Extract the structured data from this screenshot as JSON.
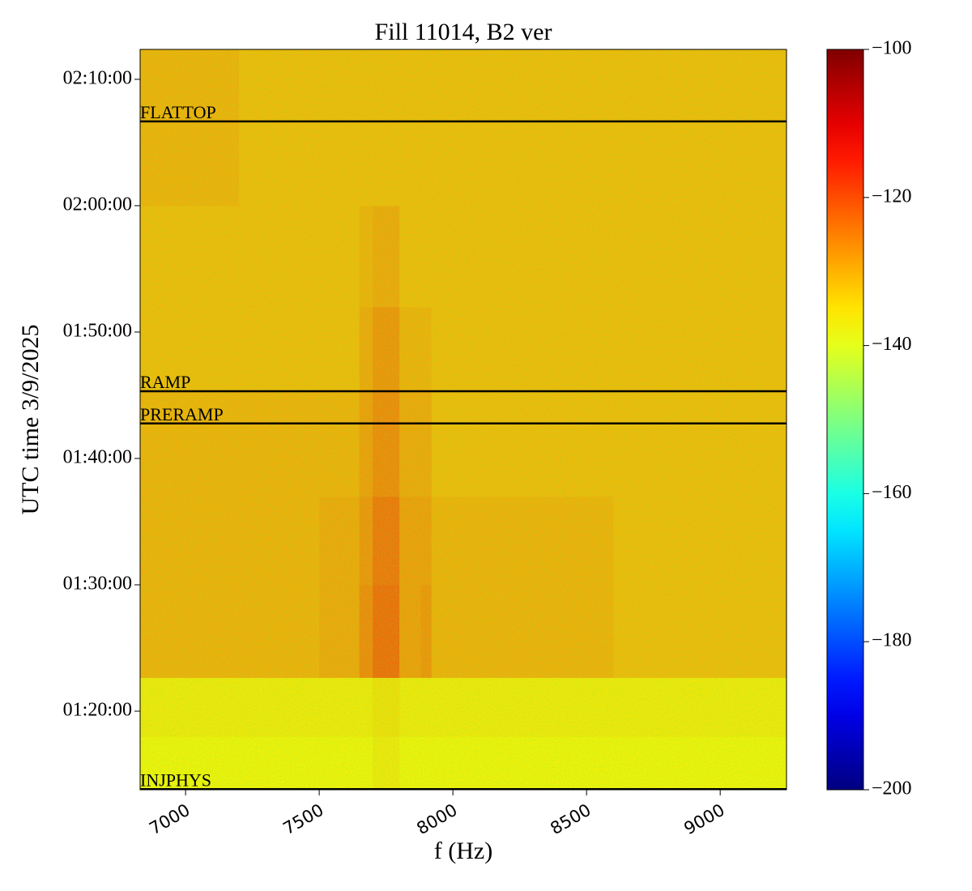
{
  "chart_data": {
    "type": "heatmap",
    "title": "Fill 11014, B2 ver",
    "xlabel": "f (Hz)",
    "ylabel": "UTC time 3/9/2025",
    "colormap": "jet",
    "xlim": [
      6830,
      9248
    ],
    "xticks": [
      7000,
      7500,
      8000,
      8500,
      9000
    ],
    "ylim": [
      "01:13:47",
      "02:12:22"
    ],
    "yticks": [
      "01:20:00",
      "01:30:00",
      "01:40:00",
      "01:50:00",
      "02:00:00",
      "02:10:00"
    ],
    "clim": [
      -200,
      -100
    ],
    "cticks": [
      {
        "value": -200,
        "label": "−200"
      },
      {
        "value": -180,
        "label": "−180"
      },
      {
        "value": -160,
        "label": "−160"
      },
      {
        "value": -140,
        "label": "−140"
      },
      {
        "value": -120,
        "label": "−120"
      },
      {
        "value": -100,
        "label": "−100"
      }
    ],
    "x_edges": [
      6830,
      7200,
      7500,
      7650,
      7700,
      7800,
      7880,
      7920,
      8200,
      8600,
      9000,
      9248
    ],
    "y_edges": [
      "01:13:47",
      "01:18:00",
      "01:22:40",
      "01:30:00",
      "01:37:00",
      "01:45:19",
      "01:52:00",
      "02:00:00",
      "02:06:40",
      "02:12:22"
    ],
    "z": [
      [
        -136,
        -136,
        -136,
        -136,
        -135,
        -136,
        -136,
        -136,
        -136,
        -136,
        -136
      ],
      [
        -135,
        -135,
        -135,
        -135,
        -134,
        -135,
        -135,
        -135,
        -135,
        -135,
        -135
      ],
      [
        -129,
        -129,
        -128,
        -125,
        -122,
        -127,
        -126,
        -129,
        -129,
        -130,
        -130
      ],
      [
        -129,
        -129,
        -128,
        -126,
        -123,
        -127,
        -127,
        -129,
        -129,
        -130,
        -130
      ],
      [
        -129,
        -129,
        -129,
        -127,
        -125,
        -128,
        -128,
        -130,
        -130,
        -130,
        -130
      ],
      [
        -130,
        -130,
        -130,
        -128,
        -126,
        -129,
        -129,
        -130,
        -130,
        -130,
        -130
      ],
      [
        -130,
        -130,
        -130,
        -129,
        -128,
        -130,
        -130,
        -130,
        -130,
        -130,
        -130
      ],
      [
        -129,
        -130,
        -130,
        -130,
        -130,
        -130,
        -130,
        -130,
        -130,
        -130,
        -130
      ],
      [
        -129,
        -130,
        -130,
        -130,
        -130,
        -130,
        -130,
        -130,
        -130,
        -130,
        -130
      ]
    ],
    "annotations": [
      {
        "text": "FLATTOP",
        "y": "02:06:40"
      },
      {
        "text": "RAMP",
        "y": "01:45:19"
      },
      {
        "text": "PRERAMP",
        "y": "01:42:46"
      },
      {
        "text": "INJPHYS",
        "y": "01:13:50"
      }
    ]
  }
}
